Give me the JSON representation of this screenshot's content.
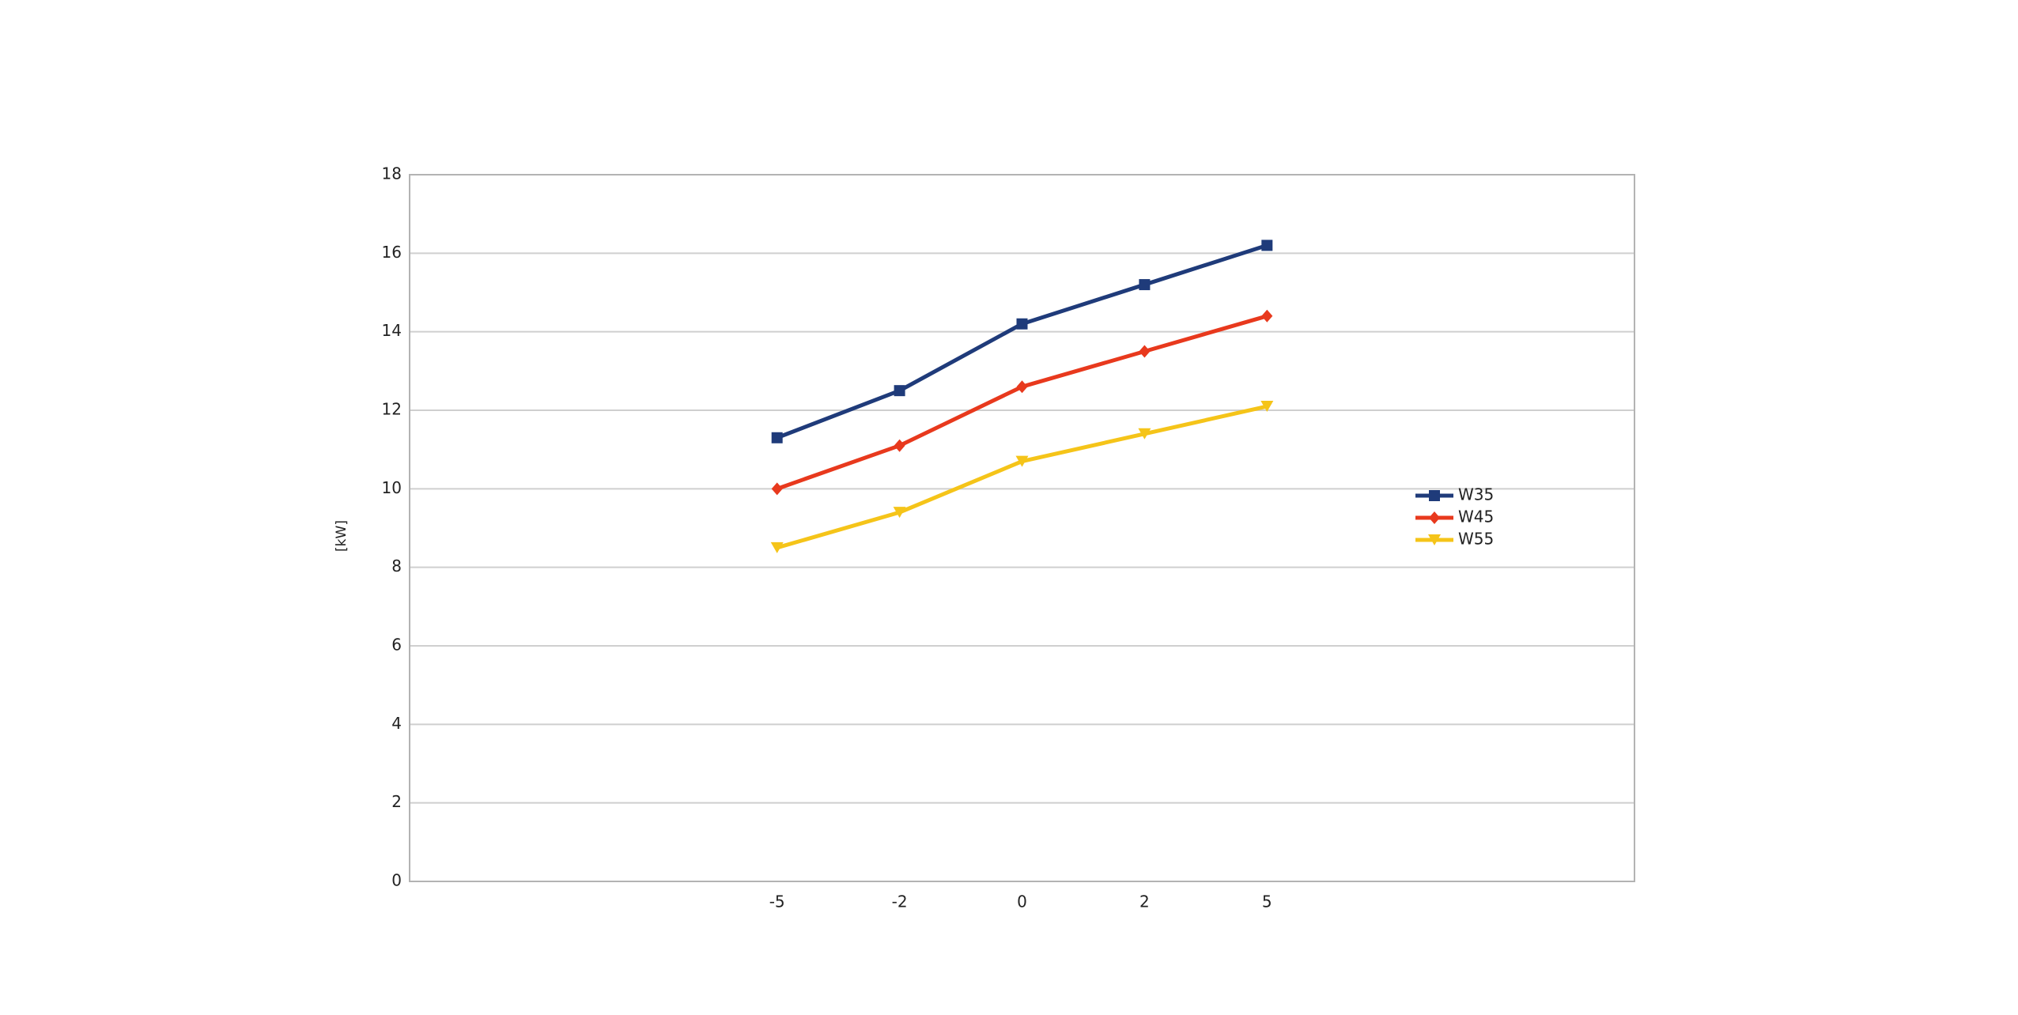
{
  "chart_data": {
    "type": "line",
    "y_label": "[kW]",
    "categories": [
      null,
      null,
      null,
      "-5",
      "-2",
      "0",
      "2",
      "5",
      null,
      null,
      null
    ],
    "series": [
      {
        "name": "W35",
        "color": "#1f3b7a",
        "marker": "square",
        "values": [
          null,
          null,
          null,
          11.3,
          12.5,
          14.2,
          15.2,
          16.2,
          null,
          null,
          null
        ]
      },
      {
        "name": "W45",
        "color": "#e8391d",
        "marker": "diamond",
        "values": [
          null,
          null,
          null,
          10.0,
          11.1,
          12.6,
          13.5,
          14.4,
          null,
          null,
          null
        ]
      },
      {
        "name": "W55",
        "color": "#f5c419",
        "marker": "triangle-down",
        "values": [
          null,
          null,
          null,
          8.5,
          9.4,
          10.7,
          11.4,
          12.1,
          null,
          null,
          null
        ]
      }
    ],
    "ylim": [
      0,
      18
    ],
    "yticks": [
      0,
      2,
      4,
      6,
      8,
      10,
      12,
      14,
      16,
      18
    ],
    "grid": true,
    "legend": "right"
  }
}
